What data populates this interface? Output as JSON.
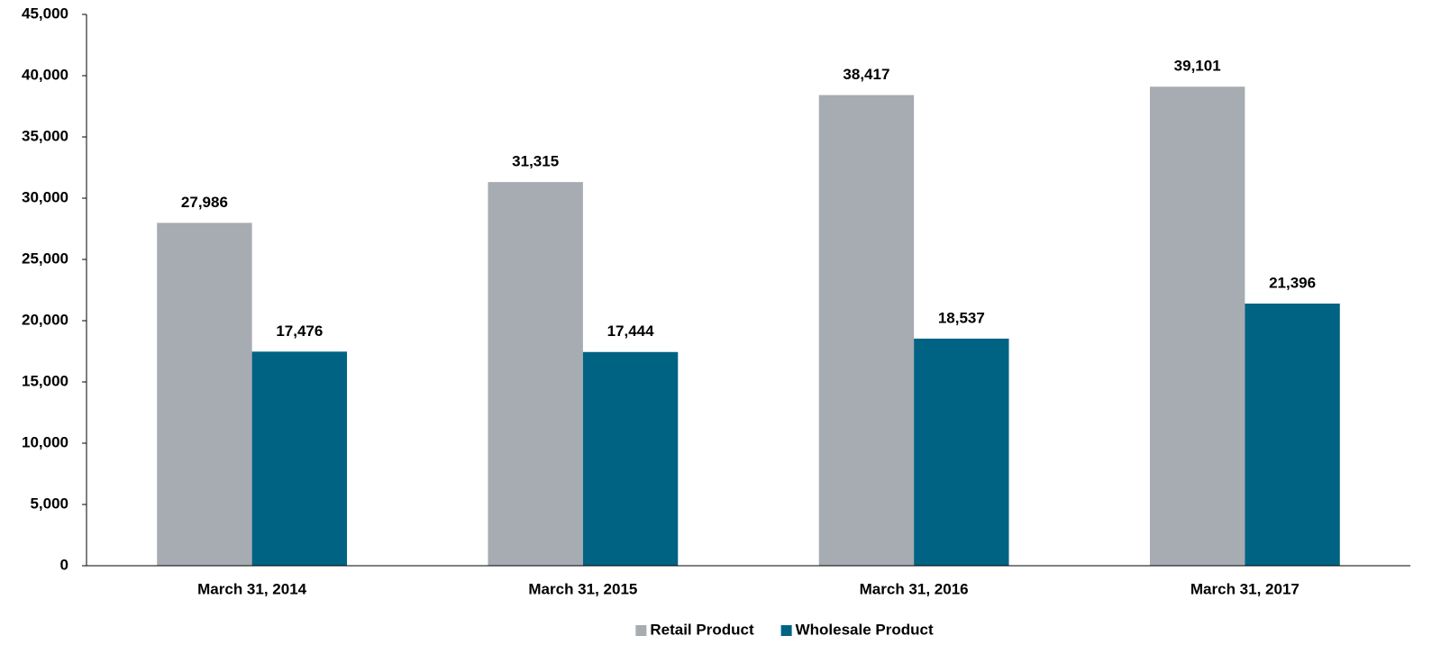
{
  "chart_data": {
    "type": "bar",
    "categories": [
      "March 31, 2014",
      "March 31, 2015",
      "March 31, 2016",
      "March 31, 2017"
    ],
    "series": [
      {
        "name": "Retail Product",
        "color": "#a7abb2",
        "values": [
          27986,
          31315,
          38417,
          39101
        ],
        "value_labels": [
          "27,986",
          "31,315",
          "38,417",
          "39,101"
        ]
      },
      {
        "name": "Wholesale Product",
        "color": "#006384",
        "values": [
          17476,
          17444,
          18537,
          21396
        ],
        "value_labels": [
          "17,476",
          "17,444",
          "18,537",
          "21,396"
        ]
      }
    ],
    "ylim": [
      0,
      45000
    ],
    "yticks": [
      0,
      {
        "value": 5000,
        "label": "5,000"
      },
      {
        "value": 10000,
        "label": "10,000"
      },
      {
        "value": 15000,
        "label": "15,000"
      },
      {
        "value": 20000,
        "label": "20,000"
      },
      {
        "value": 25000,
        "label": "25,000"
      },
      {
        "value": 30000,
        "label": "30,000"
      },
      {
        "value": 35000,
        "label": "35,000"
      },
      {
        "value": 40000,
        "label": "40,000"
      },
      {
        "value": 45000,
        "label": "45,000"
      }
    ],
    "grid": false,
    "legend": "bottom"
  }
}
